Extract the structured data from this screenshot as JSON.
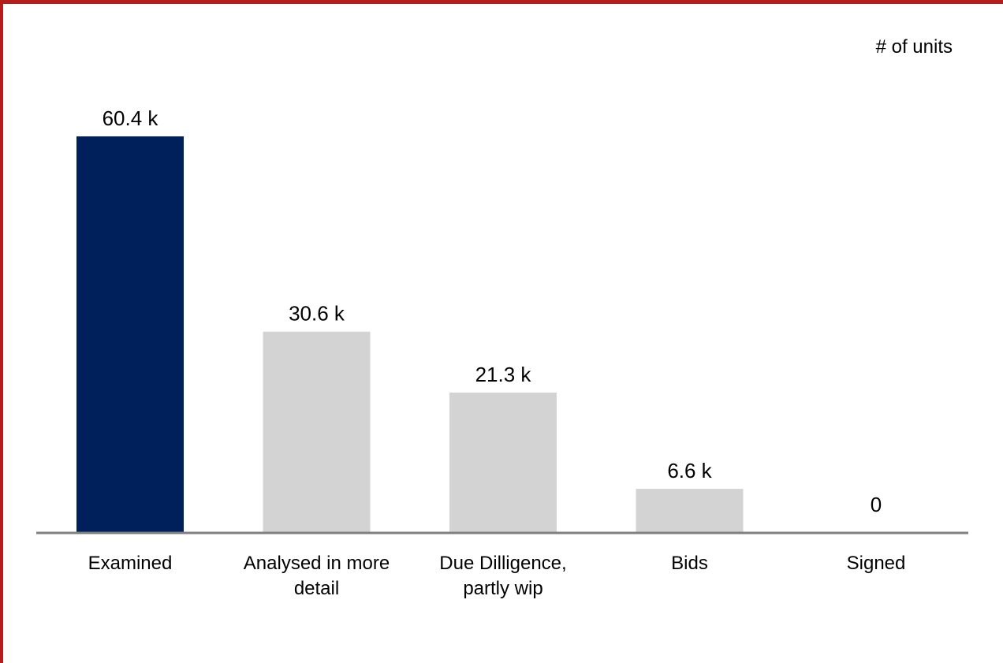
{
  "chart_data": {
    "type": "bar",
    "unit_label": "# of units",
    "categories": [
      [
        "Examined"
      ],
      [
        "Analysed in more",
        "detail"
      ],
      [
        "Due Dilligence,",
        "partly wip"
      ],
      [
        "Bids"
      ],
      [
        "Signed"
      ]
    ],
    "values": [
      60.4,
      30.6,
      21.3,
      6.6,
      0
    ],
    "value_labels": [
      "60.4 k",
      "30.6 k",
      "21.3 k",
      "6.6 k",
      "0"
    ],
    "highlight_index": 0,
    "colors": {
      "highlight": "#00205b",
      "default": "#d3d3d3",
      "axis": "#808080",
      "frame": "#b51c1c"
    },
    "ylim": [
      0,
      60.4
    ],
    "grid": false,
    "legend": "none"
  }
}
